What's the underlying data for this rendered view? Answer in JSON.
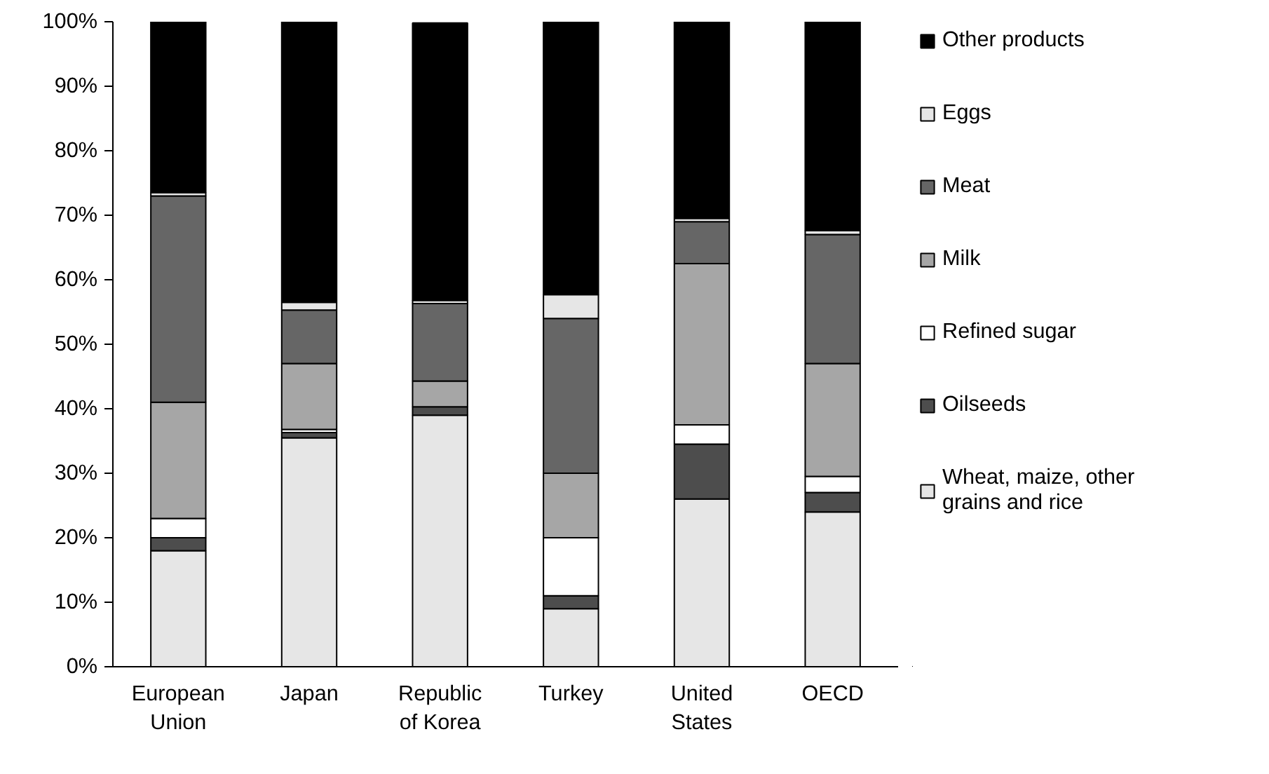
{
  "chart_data": {
    "type": "bar",
    "stacked": true,
    "categories": [
      "European Union",
      "Japan",
      "Republic of Korea",
      "Turkey",
      "United States",
      "OECD"
    ],
    "series": [
      {
        "name": "Wheat, maize, other grains and rice",
        "color": "#e6e6e6",
        "values": [
          18,
          35.5,
          39,
          9,
          26,
          24
        ]
      },
      {
        "name": "Oilseeds",
        "color": "#4d4d4d",
        "values": [
          2,
          0.8,
          1.3,
          2,
          8.5,
          3
        ]
      },
      {
        "name": "Refined sugar",
        "color": "#ffffff",
        "values": [
          3,
          0.5,
          null,
          9,
          3,
          2.5
        ]
      },
      {
        "name": "Milk",
        "color": "#a6a6a6",
        "values": [
          18,
          10.2,
          4,
          10,
          25,
          17.5
        ]
      },
      {
        "name": "Meat",
        "color": "#666666",
        "values": [
          32,
          8.3,
          12,
          24,
          6.5,
          20
        ]
      },
      {
        "name": "Eggs",
        "color": "#e6e6e6",
        "values": [
          0.5,
          1.2,
          0.5,
          3.7,
          0.5,
          0.6
        ]
      },
      {
        "name": "Other products",
        "color": "#000000",
        "values": [
          26.5,
          43.5,
          43,
          42.3,
          30.5,
          32.4
        ]
      }
    ],
    "ylim": [
      0,
      100
    ],
    "yticks": [
      {
        "value": 0,
        "label": "0%"
      },
      {
        "value": 10,
        "label": "10%"
      },
      {
        "value": 20,
        "label": "20%"
      },
      {
        "value": 30,
        "label": "30%"
      },
      {
        "value": 40,
        "label": "40%"
      },
      {
        "value": 50,
        "label": "50%"
      },
      {
        "value": 60,
        "label": "60%"
      },
      {
        "value": 70,
        "label": "70%"
      },
      {
        "value": 80,
        "label": "80%"
      },
      {
        "value": 90,
        "label": "90%"
      },
      {
        "value": 100,
        "label": "100%"
      }
    ],
    "grid": false,
    "legend": "right"
  }
}
